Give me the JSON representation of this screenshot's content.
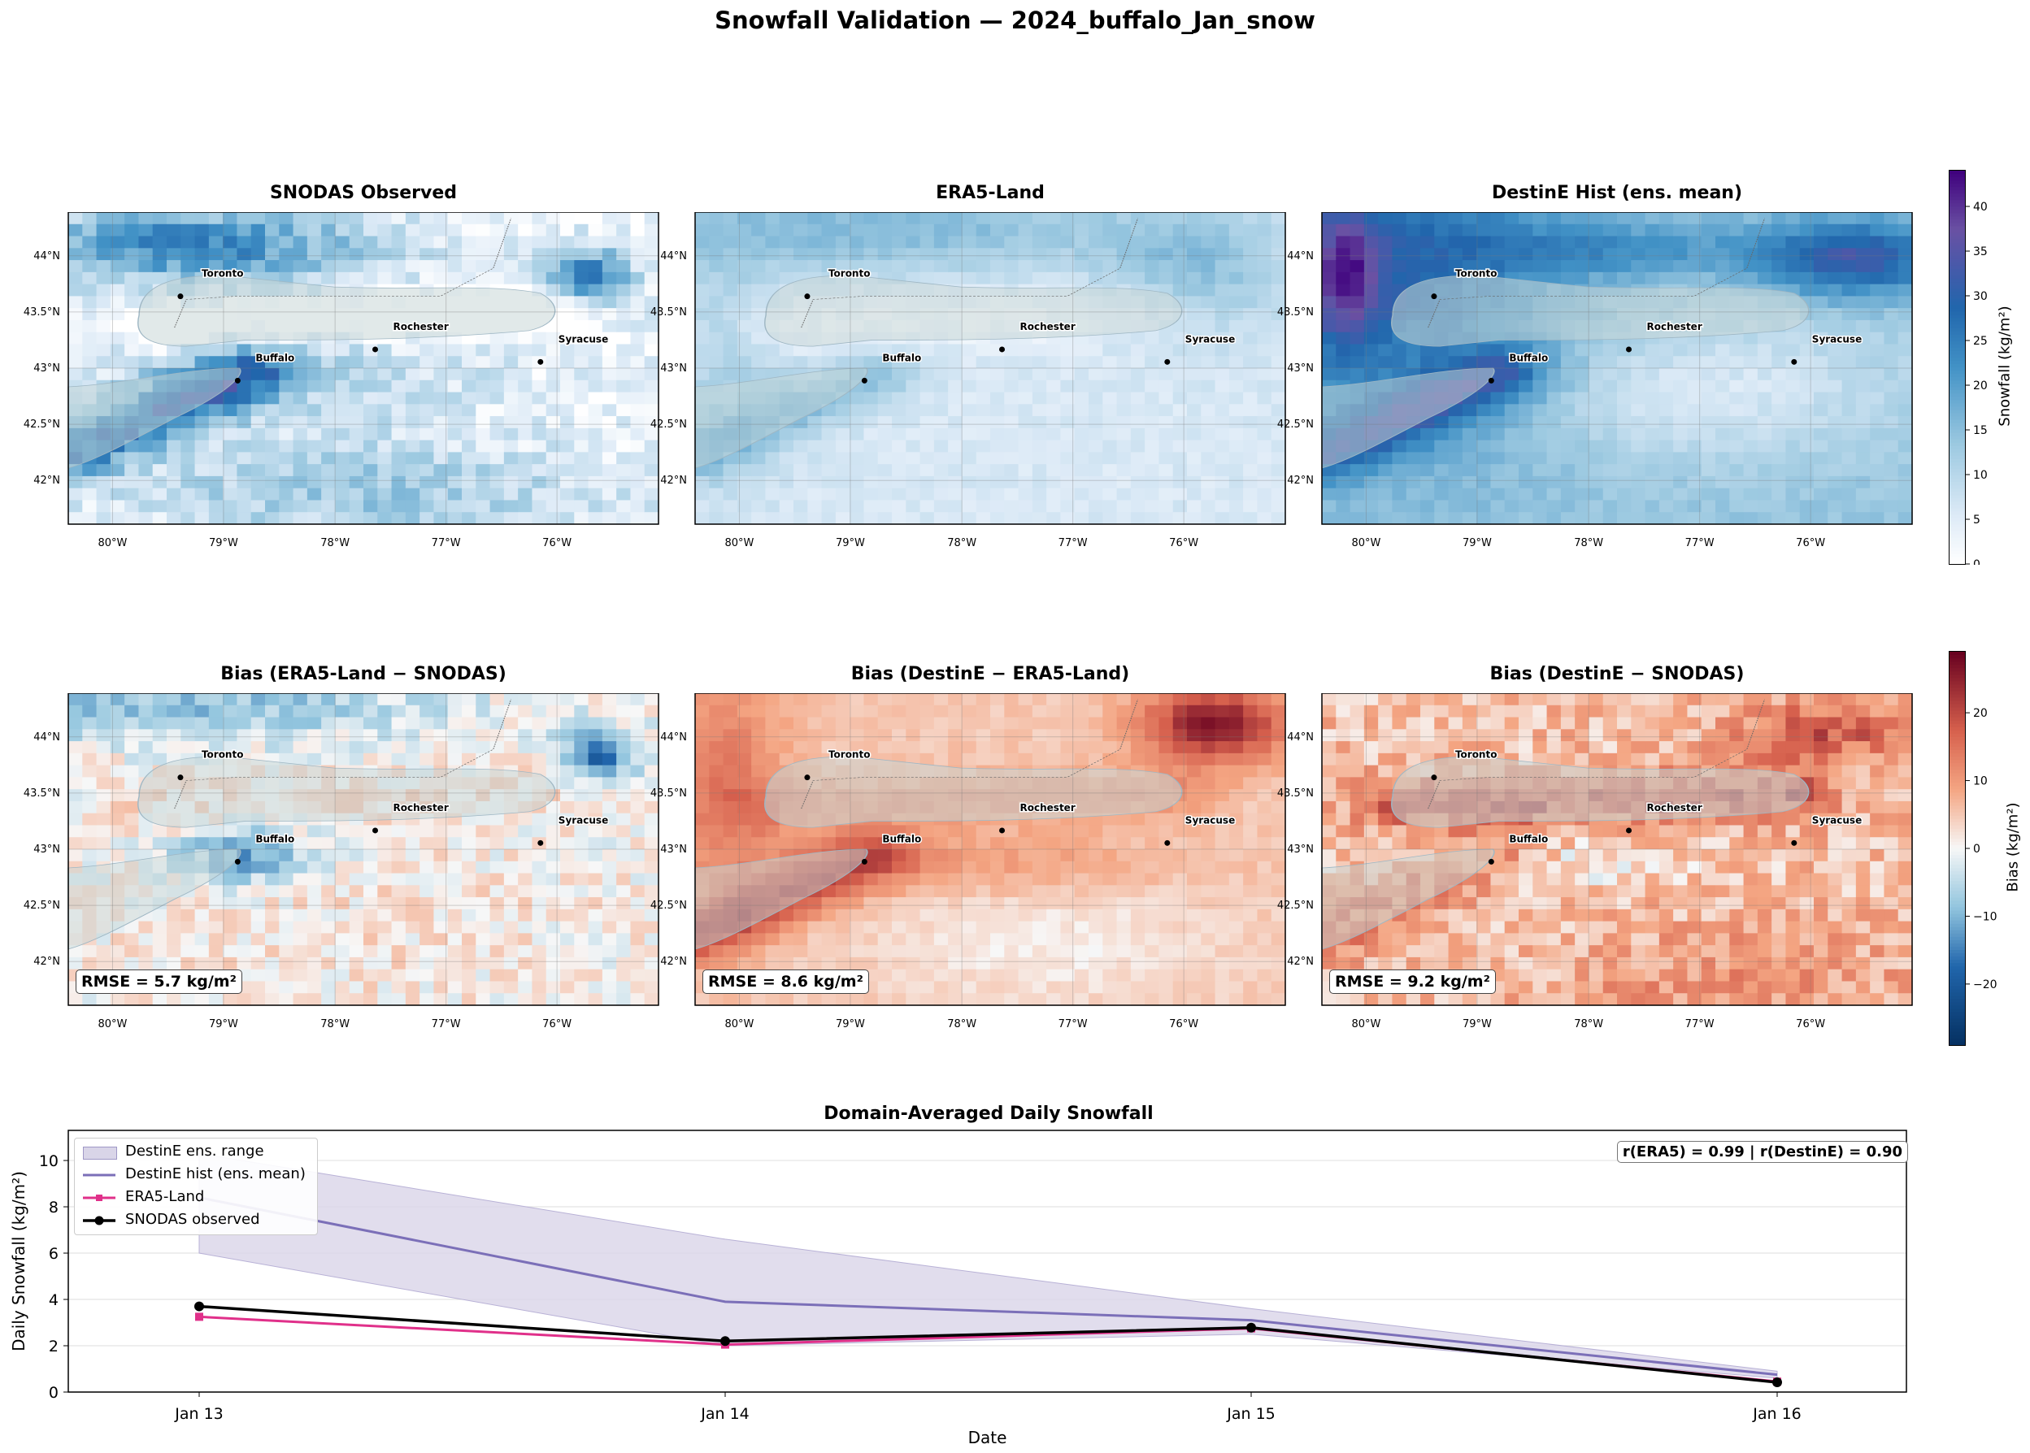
{
  "suptitle": "Snowfall Validation — 2024_buffalo_Jan_snow",
  "maps": {
    "titles": [
      "SNODAS Observed",
      "ERA5-Land",
      "DestinE Hist (ens. mean)",
      "Bias (ERA5-Land − SNODAS)",
      "Bias (DestinE − ERA5-Land)",
      "Bias (DestinE − SNODAS)"
    ],
    "lon_ticks": [
      "80°W",
      "79°W",
      "78°W",
      "77°W",
      "76°W"
    ],
    "lat_ticks": [
      "44°N",
      "43.5°N",
      "43°N",
      "42.5°N",
      "42°N"
    ],
    "cities": [
      "Toronto",
      "Rochester",
      "Buffalo",
      "Syracuse"
    ],
    "rmse": [
      "RMSE = 5.7 kg/m²",
      "RMSE = 8.6 kg/m²",
      "RMSE = 9.2 kg/m²"
    ]
  },
  "colorbars": {
    "snow": {
      "label": "Snowfall (kg/m²)",
      "ticks": [
        "0",
        "5",
        "10",
        "15",
        "20",
        "25",
        "30",
        "35",
        "40"
      ],
      "range": [
        0,
        44
      ]
    },
    "bias": {
      "label": "Bias (kg/m²)",
      "ticks": [
        "20",
        "10",
        "0",
        "−10",
        "−20"
      ],
      "range": [
        -29,
        29
      ]
    }
  },
  "colors": {
    "destine": "#7b6fb8",
    "destine_band": "#d9d5e8",
    "era5": "#e0308a",
    "snodas": "#000000",
    "blue": "#1f5fa8",
    "red": "#b2182b"
  },
  "chart_data": {
    "type": "line",
    "title": "Domain-Averaged Daily Snowfall",
    "xlabel": "Date",
    "ylabel": "Daily Snowfall (kg/m²)",
    "categories": [
      "Jan 13",
      "Jan 14",
      "Jan 15",
      "Jan 16"
    ],
    "ylim": [
      0,
      11.3
    ],
    "yticks": [
      "0",
      "2",
      "4",
      "6",
      "8",
      "10"
    ],
    "grid": true,
    "legend_position": "top-left",
    "band": {
      "name": "DestinE ens. range",
      "lower": [
        6.0,
        2.0,
        2.5,
        0.6
      ],
      "upper": [
        10.3,
        6.6,
        3.6,
        0.9
      ]
    },
    "series": [
      {
        "name": "DestinE hist (ens. mean)",
        "values": [
          8.4,
          3.9,
          3.1,
          0.75
        ]
      },
      {
        "name": "ERA5-Land",
        "values": [
          3.25,
          2.05,
          2.75,
          0.45
        ]
      },
      {
        "name": "SNODAS observed",
        "values": [
          3.7,
          2.2,
          2.78,
          0.42
        ]
      }
    ],
    "annotation": "r(ERA5) = 0.99  |  r(DestinE) = 0.90"
  }
}
